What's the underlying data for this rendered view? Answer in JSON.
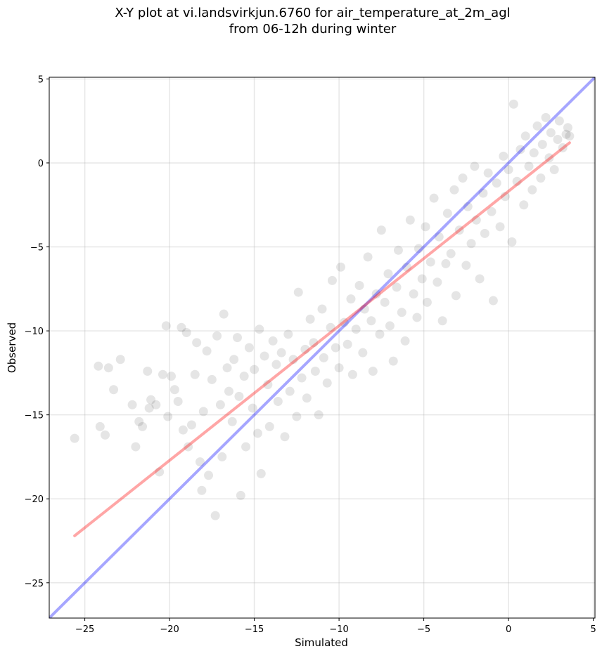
{
  "chart_data": {
    "type": "scatter",
    "title_line1": "X-Y plot at vi.landsvirkjun.6760 for air_temperature_at_2m_agl",
    "title_line2": "from 06-12h during winter",
    "xlabel": "Simulated",
    "ylabel": "Observed",
    "xlim": [
      -27.1,
      5.1
    ],
    "ylim": [
      -27.1,
      5.1
    ],
    "xticks": [
      -25,
      -20,
      -15,
      -10,
      -5,
      0,
      5
    ],
    "yticks": [
      5,
      0,
      -5,
      -10,
      -15,
      -20,
      -25
    ],
    "tick_labels": {
      "x": [
        "−25",
        "−20",
        "−15",
        "−10",
        "−5",
        "0",
        "5"
      ],
      "y": [
        "5",
        "0",
        "−5",
        "−10",
        "−15",
        "−20",
        "−25"
      ]
    },
    "grid": true,
    "point_color": "#000000",
    "point_alpha": 0.1,
    "lines": [
      {
        "role": "identity",
        "color": "#0000ff",
        "alpha": 0.35,
        "x": [
          -27.1,
          5.1
        ],
        "y": [
          -27.1,
          5.1
        ]
      },
      {
        "role": "fit",
        "color": "#ff0000",
        "alpha": 0.35,
        "x": [
          -25.6,
          3.6
        ],
        "y": [
          -22.2,
          1.2
        ]
      }
    ],
    "points": [
      [
        -25.6,
        -16.4
      ],
      [
        -24.2,
        -12.1
      ],
      [
        -24.1,
        -15.7
      ],
      [
        -23.8,
        -16.2
      ],
      [
        -23.6,
        -12.2
      ],
      [
        -23.3,
        -13.5
      ],
      [
        -22.9,
        -11.7
      ],
      [
        -22.2,
        -14.4
      ],
      [
        -22.0,
        -16.9
      ],
      [
        -21.8,
        -15.4
      ],
      [
        -21.6,
        -15.7
      ],
      [
        -21.3,
        -12.4
      ],
      [
        -21.2,
        -14.6
      ],
      [
        -21.1,
        -14.1
      ],
      [
        -20.8,
        -14.4
      ],
      [
        -20.6,
        -18.4
      ],
      [
        -20.4,
        -12.6
      ],
      [
        -20.2,
        -9.7
      ],
      [
        -20.1,
        -15.1
      ],
      [
        -19.9,
        -12.7
      ],
      [
        -19.7,
        -13.5
      ],
      [
        -19.5,
        -14.2
      ],
      [
        -19.3,
        -9.8
      ],
      [
        -19.2,
        -15.9
      ],
      [
        -19.0,
        -10.1
      ],
      [
        -18.9,
        -16.9
      ],
      [
        -18.7,
        -15.6
      ],
      [
        -18.5,
        -12.6
      ],
      [
        -18.4,
        -10.7
      ],
      [
        -18.2,
        -17.8
      ],
      [
        -18.1,
        -19.5
      ],
      [
        -18.0,
        -14.8
      ],
      [
        -17.8,
        -11.2
      ],
      [
        -17.7,
        -18.6
      ],
      [
        -17.5,
        -12.9
      ],
      [
        -17.3,
        -21.0
      ],
      [
        -17.2,
        -10.3
      ],
      [
        -17.0,
        -14.4
      ],
      [
        -16.9,
        -17.5
      ],
      [
        -16.8,
        -9.0
      ],
      [
        -16.6,
        -12.2
      ],
      [
        -16.5,
        -13.6
      ],
      [
        -16.3,
        -15.4
      ],
      [
        -16.2,
        -11.7
      ],
      [
        -16.0,
        -10.4
      ],
      [
        -15.9,
        -13.9
      ],
      [
        -15.8,
        -19.8
      ],
      [
        -15.6,
        -12.7
      ],
      [
        -15.5,
        -16.9
      ],
      [
        -15.3,
        -11.0
      ],
      [
        -15.1,
        -14.6
      ],
      [
        -15.0,
        -12.3
      ],
      [
        -14.8,
        -16.1
      ],
      [
        -14.7,
        -9.9
      ],
      [
        -14.6,
        -18.5
      ],
      [
        -14.4,
        -11.5
      ],
      [
        -14.2,
        -13.2
      ],
      [
        -14.1,
        -15.7
      ],
      [
        -13.9,
        -10.6
      ],
      [
        -13.7,
        -12.0
      ],
      [
        -13.6,
        -14.2
      ],
      [
        -13.4,
        -11.3
      ],
      [
        -13.2,
        -16.3
      ],
      [
        -13.0,
        -10.2
      ],
      [
        -12.9,
        -13.6
      ],
      [
        -12.7,
        -11.7
      ],
      [
        -12.5,
        -15.1
      ],
      [
        -12.4,
        -7.7
      ],
      [
        -12.2,
        -12.8
      ],
      [
        -12.0,
        -11.1
      ],
      [
        -11.9,
        -14.0
      ],
      [
        -11.7,
        -9.3
      ],
      [
        -11.5,
        -10.7
      ],
      [
        -11.4,
        -12.4
      ],
      [
        -11.2,
        -15.0
      ],
      [
        -11.0,
        -8.7
      ],
      [
        -10.9,
        -11.6
      ],
      [
        -10.7,
        -13.1
      ],
      [
        -10.5,
        -9.8
      ],
      [
        -10.4,
        -7.0
      ],
      [
        -10.2,
        -11.0
      ],
      [
        -10.0,
        -12.2
      ],
      [
        -9.9,
        -6.2
      ],
      [
        -9.7,
        -9.5
      ],
      [
        -9.5,
        -10.8
      ],
      [
        -9.3,
        -8.1
      ],
      [
        -9.2,
        -12.6
      ],
      [
        -9.0,
        -9.9
      ],
      [
        -8.8,
        -7.3
      ],
      [
        -8.6,
        -11.3
      ],
      [
        -8.5,
        -8.7
      ],
      [
        -8.3,
        -5.6
      ],
      [
        -8.1,
        -9.4
      ],
      [
        -8.0,
        -12.4
      ],
      [
        -7.8,
        -7.8
      ],
      [
        -7.6,
        -10.2
      ],
      [
        -7.5,
        -4.0
      ],
      [
        -7.3,
        -8.3
      ],
      [
        -7.1,
        -6.6
      ],
      [
        -7.0,
        -9.7
      ],
      [
        -6.8,
        -11.8
      ],
      [
        -6.6,
        -7.4
      ],
      [
        -6.5,
        -5.2
      ],
      [
        -6.3,
        -8.9
      ],
      [
        -6.1,
        -10.6
      ],
      [
        -6.0,
        -6.2
      ],
      [
        -5.8,
        -3.4
      ],
      [
        -5.6,
        -7.8
      ],
      [
        -5.4,
        -9.2
      ],
      [
        -5.3,
        -5.1
      ],
      [
        -5.1,
        -6.9
      ],
      [
        -4.9,
        -3.8
      ],
      [
        -4.8,
        -8.3
      ],
      [
        -4.6,
        -5.9
      ],
      [
        -4.4,
        -2.1
      ],
      [
        -4.2,
        -7.1
      ],
      [
        -4.1,
        -4.4
      ],
      [
        -3.9,
        -9.4
      ],
      [
        -3.7,
        -6.0
      ],
      [
        -3.6,
        -3.0
      ],
      [
        -3.4,
        -5.4
      ],
      [
        -3.2,
        -1.6
      ],
      [
        -3.1,
        -7.9
      ],
      [
        -2.9,
        -4.0
      ],
      [
        -2.7,
        -0.9
      ],
      [
        -2.5,
        -6.1
      ],
      [
        -2.4,
        -2.6
      ],
      [
        -2.2,
        -4.8
      ],
      [
        -2.0,
        -0.2
      ],
      [
        -1.9,
        -3.4
      ],
      [
        -1.7,
        -6.9
      ],
      [
        -1.5,
        -1.8
      ],
      [
        -1.4,
        -4.2
      ],
      [
        -1.2,
        -0.6
      ],
      [
        -1.0,
        -2.9
      ],
      [
        -0.9,
        -8.2
      ],
      [
        -0.7,
        -1.2
      ],
      [
        -0.5,
        -3.8
      ],
      [
        -0.3,
        0.4
      ],
      [
        -0.2,
        -2.0
      ],
      [
        0.0,
        -0.4
      ],
      [
        0.2,
        -4.7
      ],
      [
        0.3,
        3.5
      ],
      [
        0.5,
        -1.1
      ],
      [
        0.7,
        0.8
      ],
      [
        0.9,
        -2.5
      ],
      [
        1.0,
        1.6
      ],
      [
        1.2,
        -0.2
      ],
      [
        1.4,
        -1.6
      ],
      [
        1.5,
        0.6
      ],
      [
        1.7,
        2.2
      ],
      [
        1.9,
        -0.9
      ],
      [
        2.0,
        1.1
      ],
      [
        2.2,
        2.7
      ],
      [
        2.4,
        0.3
      ],
      [
        2.5,
        1.8
      ],
      [
        2.7,
        -0.4
      ],
      [
        2.9,
        1.4
      ],
      [
        3.0,
        2.5
      ],
      [
        3.2,
        0.9
      ],
      [
        3.4,
        1.7
      ],
      [
        3.5,
        2.1
      ],
      [
        3.6,
        1.6
      ]
    ]
  }
}
